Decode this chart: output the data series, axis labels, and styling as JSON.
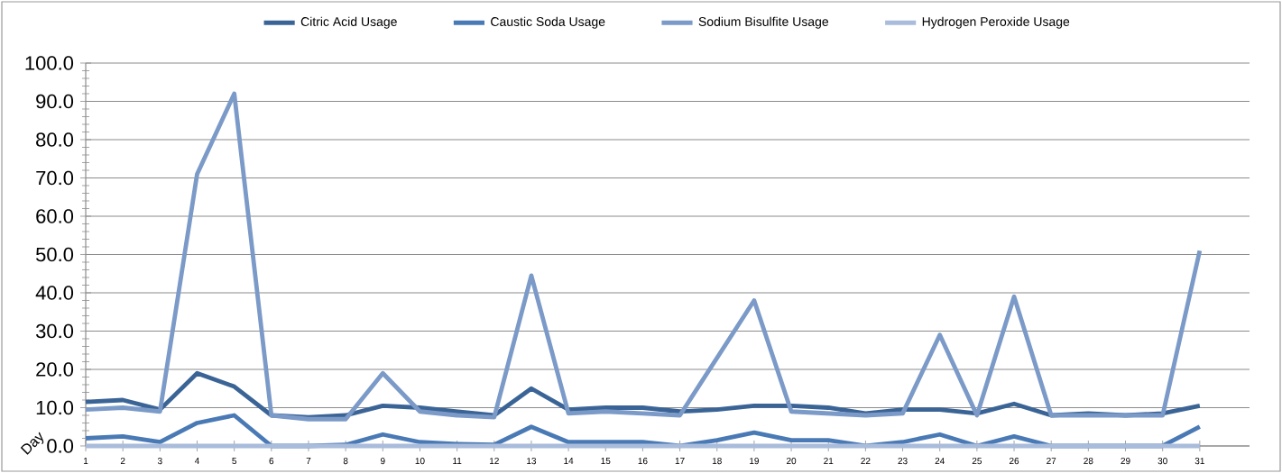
{
  "chart_data": {
    "type": "line",
    "xlabel": "Day",
    "categories": [
      "1",
      "2",
      "3",
      "4",
      "5",
      "6",
      "7",
      "8",
      "9",
      "10",
      "11",
      "12",
      "13",
      "14",
      "15",
      "16",
      "17",
      "18",
      "19",
      "20",
      "21",
      "22",
      "23",
      "24",
      "25",
      "26",
      "27",
      "28",
      "29",
      "30",
      "31"
    ],
    "series": [
      {
        "name": "Citric Acid Usage",
        "color": "#3b6496",
        "values": [
          11.5,
          12,
          9.5,
          19,
          15.5,
          8,
          7.5,
          8,
          10.5,
          10,
          9,
          8,
          15,
          9.5,
          10,
          10,
          9,
          9.5,
          10.5,
          10.5,
          10,
          8.5,
          9.5,
          9.5,
          8.5,
          11,
          8,
          8.5,
          8,
          8.5,
          10.5
        ]
      },
      {
        "name": "Caustic Soda Usage",
        "color": "#4a7ab5",
        "values": [
          2,
          2.5,
          1,
          6,
          8,
          0,
          0,
          0.3,
          3,
          1,
          0.5,
          0.3,
          5,
          1,
          1,
          1,
          0,
          1.5,
          3.5,
          1.5,
          1.5,
          0,
          1,
          3,
          0,
          2.5,
          0,
          0,
          0,
          0,
          5
        ]
      },
      {
        "name": "Sodium Bisulfite Usage",
        "color": "#7b9ac8",
        "values": [
          9.5,
          10,
          9,
          71,
          92,
          8,
          7,
          7,
          19,
          9,
          8,
          7.5,
          44.5,
          8.5,
          9,
          8.5,
          8,
          23,
          38,
          9,
          8.5,
          8,
          8.5,
          29,
          8,
          39,
          8,
          8,
          8,
          8,
          51
        ]
      },
      {
        "name": "Hydrogen Peroxide Usage",
        "color": "#a9bcdb",
        "values": [
          0,
          0,
          0,
          0,
          0,
          0,
          0,
          0,
          0,
          0,
          0,
          0,
          0,
          0,
          0,
          0,
          0,
          0,
          0,
          0,
          0,
          0,
          0,
          0,
          0,
          0,
          0,
          0,
          0,
          0,
          0
        ]
      }
    ],
    "ylim": [
      0,
      100
    ],
    "yticks": [
      {
        "value": 0,
        "label": "0.0"
      },
      {
        "value": 10,
        "label": "10.0"
      },
      {
        "value": 20,
        "label": "20.0"
      },
      {
        "value": 30,
        "label": "30.0"
      },
      {
        "value": 40,
        "label": "40.0"
      },
      {
        "value": 50,
        "label": "50.0"
      },
      {
        "value": 60,
        "label": "60.0"
      },
      {
        "value": 70,
        "label": "70.0"
      },
      {
        "value": 80,
        "label": "80.0"
      },
      {
        "value": 90,
        "label": "90.0"
      },
      {
        "value": 100,
        "label": "100.0"
      }
    ],
    "grid": "y",
    "legend": "top",
    "marker": "none",
    "line_style": "solid"
  }
}
